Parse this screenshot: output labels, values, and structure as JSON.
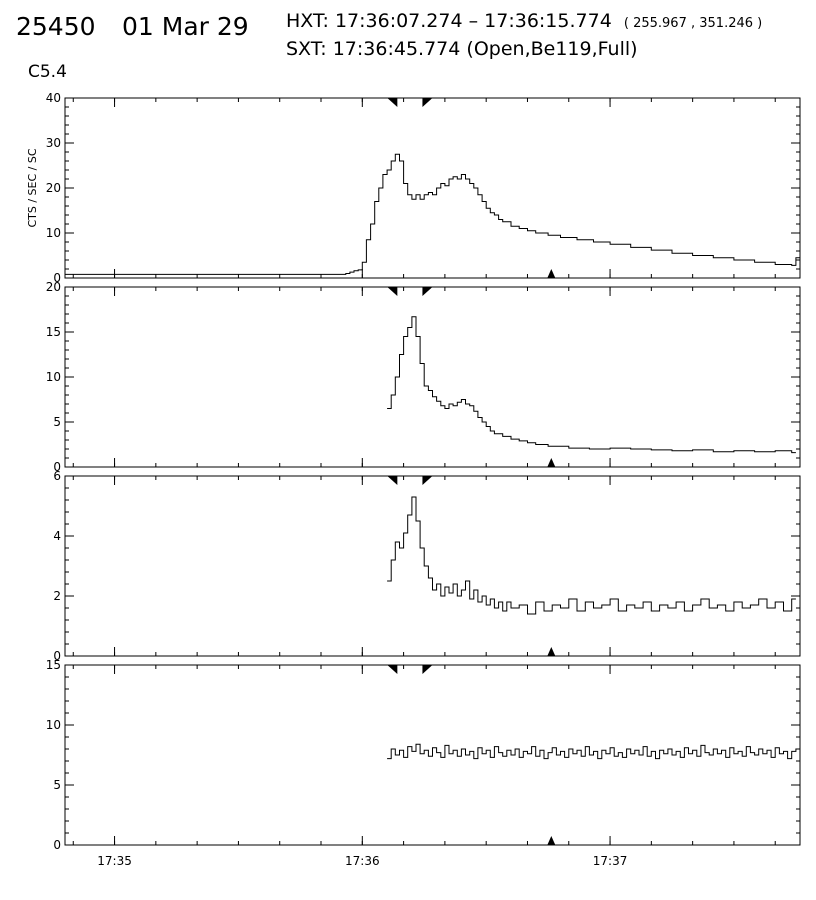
{
  "header": {
    "event_id": "25450",
    "date": "01 Mar 29",
    "hxt_label": "HXT:",
    "hxt_range": "17:36:07.274 – 17:36:15.774",
    "hxt_coords": "( 255.967 , 351.246 )",
    "sxt_label": "SXT:",
    "sxt_time": "17:36:45.774",
    "sxt_params": "(Open,Be119,Full)",
    "goes_class": "C5.4"
  },
  "chart_data": {
    "type": "line",
    "style": "step",
    "ylabel": "CTS / SEC / SC",
    "x_unit": "seconds after 17:34:00",
    "xlim": [
      48,
      226
    ],
    "x_ticks": [
      {
        "x": 60,
        "label": "17:35"
      },
      {
        "x": 120,
        "label": "17:36"
      },
      {
        "x": 180,
        "label": "17:37"
      }
    ],
    "markers": {
      "hxt_start": 127.274,
      "hxt_end": 135.774,
      "sxt": 165.774
    },
    "panels": [
      {
        "ylim": [
          0,
          40
        ],
        "yticks": [
          0,
          10,
          20,
          30,
          40
        ],
        "series": [
          {
            "x": 48,
            "y": 0.8
          },
          {
            "x": 115,
            "y": 0.8
          },
          {
            "x": 116,
            "y": 1.0
          },
          {
            "x": 117,
            "y": 1.3
          },
          {
            "x": 118,
            "y": 1.6
          },
          {
            "x": 119,
            "y": 1.8
          },
          {
            "x": 120,
            "y": 3.5
          },
          {
            "x": 121,
            "y": 8.5
          },
          {
            "x": 122,
            "y": 12
          },
          {
            "x": 123,
            "y": 17
          },
          {
            "x": 124,
            "y": 20
          },
          {
            "x": 125,
            "y": 23
          },
          {
            "x": 126,
            "y": 24
          },
          {
            "x": 127,
            "y": 26
          },
          {
            "x": 128,
            "y": 27.5
          },
          {
            "x": 129,
            "y": 26
          },
          {
            "x": 130,
            "y": 21
          },
          {
            "x": 131,
            "y": 18.5
          },
          {
            "x": 132,
            "y": 17.5
          },
          {
            "x": 133,
            "y": 18.5
          },
          {
            "x": 134,
            "y": 17.5
          },
          {
            "x": 135,
            "y": 18.5
          },
          {
            "x": 136,
            "y": 19
          },
          {
            "x": 137,
            "y": 18.5
          },
          {
            "x": 138,
            "y": 20
          },
          {
            "x": 139,
            "y": 21
          },
          {
            "x": 140,
            "y": 20.5
          },
          {
            "x": 141,
            "y": 22
          },
          {
            "x": 142,
            "y": 22.5
          },
          {
            "x": 143,
            "y": 22
          },
          {
            "x": 144,
            "y": 23
          },
          {
            "x": 145,
            "y": 22
          },
          {
            "x": 146,
            "y": 21
          },
          {
            "x": 147,
            "y": 20
          },
          {
            "x": 148,
            "y": 18.5
          },
          {
            "x": 149,
            "y": 17
          },
          {
            "x": 150,
            "y": 15.5
          },
          {
            "x": 151,
            "y": 14.5
          },
          {
            "x": 152,
            "y": 14
          },
          {
            "x": 153,
            "y": 13
          },
          {
            "x": 154,
            "y": 12.5
          },
          {
            "x": 156,
            "y": 11.5
          },
          {
            "x": 158,
            "y": 11
          },
          {
            "x": 160,
            "y": 10.5
          },
          {
            "x": 162,
            "y": 10
          },
          {
            "x": 165,
            "y": 9.5
          },
          {
            "x": 168,
            "y": 9
          },
          {
            "x": 172,
            "y": 8.5
          },
          {
            "x": 176,
            "y": 8
          },
          {
            "x": 180,
            "y": 7.5
          },
          {
            "x": 185,
            "y": 6.8
          },
          {
            "x": 190,
            "y": 6.2
          },
          {
            "x": 195,
            "y": 5.5
          },
          {
            "x": 200,
            "y": 5
          },
          {
            "x": 205,
            "y": 4.5
          },
          {
            "x": 210,
            "y": 4
          },
          {
            "x": 215,
            "y": 3.5
          },
          {
            "x": 220,
            "y": 3
          },
          {
            "x": 224,
            "y": 2.8
          },
          {
            "x": 225,
            "y": 4.5
          }
        ]
      },
      {
        "ylim": [
          0,
          20
        ],
        "yticks": [
          0,
          5,
          10,
          15,
          20
        ],
        "series": [
          {
            "x": 126,
            "y": 6.5
          },
          {
            "x": 127,
            "y": 8
          },
          {
            "x": 128,
            "y": 10
          },
          {
            "x": 129,
            "y": 12.5
          },
          {
            "x": 130,
            "y": 14.5
          },
          {
            "x": 131,
            "y": 15.5
          },
          {
            "x": 132,
            "y": 16.7
          },
          {
            "x": 133,
            "y": 14.5
          },
          {
            "x": 134,
            "y": 11.5
          },
          {
            "x": 135,
            "y": 9
          },
          {
            "x": 136,
            "y": 8.5
          },
          {
            "x": 137,
            "y": 7.8
          },
          {
            "x": 138,
            "y": 7.3
          },
          {
            "x": 139,
            "y": 6.8
          },
          {
            "x": 140,
            "y": 6.5
          },
          {
            "x": 141,
            "y": 7
          },
          {
            "x": 142,
            "y": 6.8
          },
          {
            "x": 143,
            "y": 7.2
          },
          {
            "x": 144,
            "y": 7.5
          },
          {
            "x": 145,
            "y": 7
          },
          {
            "x": 146,
            "y": 6.8
          },
          {
            "x": 147,
            "y": 6.2
          },
          {
            "x": 148,
            "y": 5.5
          },
          {
            "x": 149,
            "y": 5
          },
          {
            "x": 150,
            "y": 4.5
          },
          {
            "x": 151,
            "y": 4
          },
          {
            "x": 152,
            "y": 3.7
          },
          {
            "x": 154,
            "y": 3.4
          },
          {
            "x": 156,
            "y": 3.1
          },
          {
            "x": 158,
            "y": 2.9
          },
          {
            "x": 160,
            "y": 2.7
          },
          {
            "x": 162,
            "y": 2.5
          },
          {
            "x": 165,
            "y": 2.3
          },
          {
            "x": 170,
            "y": 2.1
          },
          {
            "x": 175,
            "y": 2
          },
          {
            "x": 180,
            "y": 2.1
          },
          {
            "x": 185,
            "y": 2
          },
          {
            "x": 190,
            "y": 1.9
          },
          {
            "x": 195,
            "y": 1.8
          },
          {
            "x": 200,
            "y": 1.9
          },
          {
            "x": 205,
            "y": 1.7
          },
          {
            "x": 210,
            "y": 1.8
          },
          {
            "x": 215,
            "y": 1.7
          },
          {
            "x": 220,
            "y": 1.8
          },
          {
            "x": 224,
            "y": 1.6
          }
        ]
      },
      {
        "ylim": [
          0,
          6
        ],
        "yticks": [
          0,
          2,
          4,
          6
        ],
        "series": [
          {
            "x": 126,
            "y": 2.5
          },
          {
            "x": 127,
            "y": 3.2
          },
          {
            "x": 128,
            "y": 3.8
          },
          {
            "x": 129,
            "y": 3.6
          },
          {
            "x": 130,
            "y": 4.1
          },
          {
            "x": 131,
            "y": 4.7
          },
          {
            "x": 132,
            "y": 5.3
          },
          {
            "x": 133,
            "y": 4.5
          },
          {
            "x": 134,
            "y": 3.6
          },
          {
            "x": 135,
            "y": 3.0
          },
          {
            "x": 136,
            "y": 2.6
          },
          {
            "x": 137,
            "y": 2.2
          },
          {
            "x": 138,
            "y": 2.4
          },
          {
            "x": 139,
            "y": 2.0
          },
          {
            "x": 140,
            "y": 2.3
          },
          {
            "x": 141,
            "y": 2.1
          },
          {
            "x": 142,
            "y": 2.4
          },
          {
            "x": 143,
            "y": 2.0
          },
          {
            "x": 144,
            "y": 2.2
          },
          {
            "x": 145,
            "y": 2.5
          },
          {
            "x": 146,
            "y": 1.9
          },
          {
            "x": 147,
            "y": 2.2
          },
          {
            "x": 148,
            "y": 1.8
          },
          {
            "x": 149,
            "y": 2.0
          },
          {
            "x": 150,
            "y": 1.7
          },
          {
            "x": 151,
            "y": 1.9
          },
          {
            "x": 152,
            "y": 1.6
          },
          {
            "x": 153,
            "y": 1.8
          },
          {
            "x": 154,
            "y": 1.5
          },
          {
            "x": 155,
            "y": 1.8
          },
          {
            "x": 156,
            "y": 1.6
          },
          {
            "x": 158,
            "y": 1.7
          },
          {
            "x": 160,
            "y": 1.4
          },
          {
            "x": 162,
            "y": 1.8
          },
          {
            "x": 164,
            "y": 1.5
          },
          {
            "x": 166,
            "y": 1.7
          },
          {
            "x": 168,
            "y": 1.6
          },
          {
            "x": 170,
            "y": 1.9
          },
          {
            "x": 172,
            "y": 1.5
          },
          {
            "x": 174,
            "y": 1.8
          },
          {
            "x": 176,
            "y": 1.6
          },
          {
            "x": 178,
            "y": 1.7
          },
          {
            "x": 180,
            "y": 1.9
          },
          {
            "x": 182,
            "y": 1.5
          },
          {
            "x": 184,
            "y": 1.7
          },
          {
            "x": 186,
            "y": 1.6
          },
          {
            "x": 188,
            "y": 1.8
          },
          {
            "x": 190,
            "y": 1.5
          },
          {
            "x": 192,
            "y": 1.7
          },
          {
            "x": 194,
            "y": 1.6
          },
          {
            "x": 196,
            "y": 1.8
          },
          {
            "x": 198,
            "y": 1.5
          },
          {
            "x": 200,
            "y": 1.7
          },
          {
            "x": 202,
            "y": 1.9
          },
          {
            "x": 204,
            "y": 1.6
          },
          {
            "x": 206,
            "y": 1.7
          },
          {
            "x": 208,
            "y": 1.5
          },
          {
            "x": 210,
            "y": 1.8
          },
          {
            "x": 212,
            "y": 1.6
          },
          {
            "x": 214,
            "y": 1.7
          },
          {
            "x": 216,
            "y": 1.9
          },
          {
            "x": 218,
            "y": 1.6
          },
          {
            "x": 220,
            "y": 1.8
          },
          {
            "x": 222,
            "y": 1.5
          },
          {
            "x": 224,
            "y": 1.9
          }
        ]
      },
      {
        "ylim": [
          0,
          15
        ],
        "yticks": [
          0,
          5,
          10,
          15
        ],
        "series": [
          {
            "x": 126,
            "y": 7.2
          },
          {
            "x": 127,
            "y": 8
          },
          {
            "x": 128,
            "y": 7.5
          },
          {
            "x": 129,
            "y": 7.9
          },
          {
            "x": 130,
            "y": 7.3
          },
          {
            "x": 131,
            "y": 8.2
          },
          {
            "x": 132,
            "y": 7.8
          },
          {
            "x": 133,
            "y": 8.4
          },
          {
            "x": 134,
            "y": 7.6
          },
          {
            "x": 135,
            "y": 7.9
          },
          {
            "x": 136,
            "y": 7.4
          },
          {
            "x": 137,
            "y": 8.1
          },
          {
            "x": 138,
            "y": 7.7
          },
          {
            "x": 139,
            "y": 7.3
          },
          {
            "x": 140,
            "y": 8.3
          },
          {
            "x": 141,
            "y": 7.6
          },
          {
            "x": 142,
            "y": 7.9
          },
          {
            "x": 143,
            "y": 7.4
          },
          {
            "x": 144,
            "y": 8
          },
          {
            "x": 145,
            "y": 7.5
          },
          {
            "x": 146,
            "y": 7.8
          },
          {
            "x": 147,
            "y": 7.2
          },
          {
            "x": 148,
            "y": 8.1
          },
          {
            "x": 149,
            "y": 7.6
          },
          {
            "x": 150,
            "y": 7.9
          },
          {
            "x": 151,
            "y": 7.3
          },
          {
            "x": 152,
            "y": 8.2
          },
          {
            "x": 153,
            "y": 7.7
          },
          {
            "x": 154,
            "y": 7.4
          },
          {
            "x": 155,
            "y": 7.9
          },
          {
            "x": 156,
            "y": 7.5
          },
          {
            "x": 157,
            "y": 8
          },
          {
            "x": 158,
            "y": 7.3
          },
          {
            "x": 159,
            "y": 7.8
          },
          {
            "x": 160,
            "y": 7.6
          },
          {
            "x": 161,
            "y": 8.2
          },
          {
            "x": 162,
            "y": 7.4
          },
          {
            "x": 163,
            "y": 7.9
          },
          {
            "x": 164,
            "y": 7.2
          },
          {
            "x": 165,
            "y": 7.7
          },
          {
            "x": 166,
            "y": 8.1
          },
          {
            "x": 167,
            "y": 7.5
          },
          {
            "x": 168,
            "y": 7.8
          },
          {
            "x": 169,
            "y": 7.3
          },
          {
            "x": 170,
            "y": 8
          },
          {
            "x": 171,
            "y": 7.6
          },
          {
            "x": 172,
            "y": 7.9
          },
          {
            "x": 173,
            "y": 7.4
          },
          {
            "x": 174,
            "y": 8.2
          },
          {
            "x": 175,
            "y": 7.5
          },
          {
            "x": 176,
            "y": 7.8
          },
          {
            "x": 177,
            "y": 7.2
          },
          {
            "x": 178,
            "y": 7.9
          },
          {
            "x": 179,
            "y": 7.6
          },
          {
            "x": 180,
            "y": 8.1
          },
          {
            "x": 181,
            "y": 7.4
          },
          {
            "x": 182,
            "y": 7.7
          },
          {
            "x": 183,
            "y": 7.3
          },
          {
            "x": 184,
            "y": 8
          },
          {
            "x": 185,
            "y": 7.6
          },
          {
            "x": 186,
            "y": 7.9
          },
          {
            "x": 187,
            "y": 7.5
          },
          {
            "x": 188,
            "y": 8.2
          },
          {
            "x": 189,
            "y": 7.4
          },
          {
            "x": 190,
            "y": 7.8
          },
          {
            "x": 191,
            "y": 7.2
          },
          {
            "x": 192,
            "y": 7.9
          },
          {
            "x": 193,
            "y": 7.6
          },
          {
            "x": 194,
            "y": 8
          },
          {
            "x": 195,
            "y": 7.5
          },
          {
            "x": 196,
            "y": 7.8
          },
          {
            "x": 197,
            "y": 7.3
          },
          {
            "x": 198,
            "y": 8.1
          },
          {
            "x": 199,
            "y": 7.6
          },
          {
            "x": 200,
            "y": 7.9
          },
          {
            "x": 201,
            "y": 7.4
          },
          {
            "x": 202,
            "y": 8.3
          },
          {
            "x": 203,
            "y": 7.7
          },
          {
            "x": 204,
            "y": 7.5
          },
          {
            "x": 205,
            "y": 8
          },
          {
            "x": 206,
            "y": 7.6
          },
          {
            "x": 207,
            "y": 7.9
          },
          {
            "x": 208,
            "y": 7.3
          },
          {
            "x": 209,
            "y": 8.1
          },
          {
            "x": 210,
            "y": 7.6
          },
          {
            "x": 211,
            "y": 7.8
          },
          {
            "x": 212,
            "y": 7.4
          },
          {
            "x": 213,
            "y": 8.2
          },
          {
            "x": 214,
            "y": 7.7
          },
          {
            "x": 215,
            "y": 7.5
          },
          {
            "x": 216,
            "y": 8
          },
          {
            "x": 217,
            "y": 7.6
          },
          {
            "x": 218,
            "y": 7.9
          },
          {
            "x": 219,
            "y": 7.3
          },
          {
            "x": 220,
            "y": 8.1
          },
          {
            "x": 221,
            "y": 7.6
          },
          {
            "x": 222,
            "y": 7.8
          },
          {
            "x": 223,
            "y": 7.2
          },
          {
            "x": 224,
            "y": 7.8
          },
          {
            "x": 225,
            "y": 8
          }
        ]
      }
    ]
  }
}
